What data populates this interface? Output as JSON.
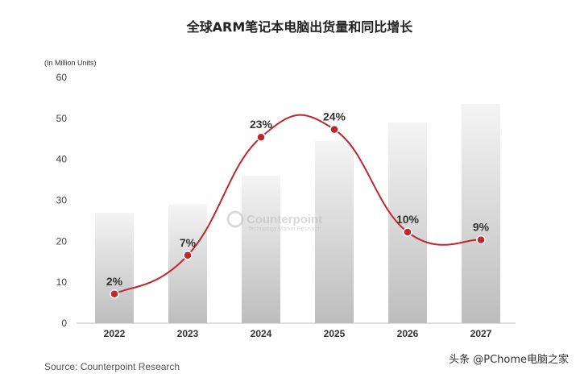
{
  "chart_data": {
    "type": "bar",
    "title": "全球ARM笔记本电脑出货量和同比增长",
    "unit_label": "(In Million Units)",
    "categories": [
      "2022",
      "2023",
      "2024",
      "2025",
      "2026",
      "2027"
    ],
    "values": [
      27,
      29,
      36,
      44.5,
      49,
      53.5
    ],
    "ylim": [
      0,
      60
    ],
    "yticks": [
      0,
      10,
      20,
      30,
      40,
      50,
      60
    ],
    "growth_line": {
      "type": "line",
      "labels": [
        "2%",
        "7%",
        "23%",
        "24%",
        "10%",
        "9%"
      ],
      "values": [
        2,
        7,
        23,
        24,
        10,
        9
      ],
      "color": "#c0262d"
    },
    "bar_color_top": "#f4f4f4",
    "bar_color_bottom": "#bdbdbd",
    "grid": false
  },
  "source": "Source: Counterpoint Research",
  "watermark": "头条 @PChome电脑之家",
  "logo": {
    "name": "Counterpoint",
    "tagline": "Technology Market Research"
  }
}
